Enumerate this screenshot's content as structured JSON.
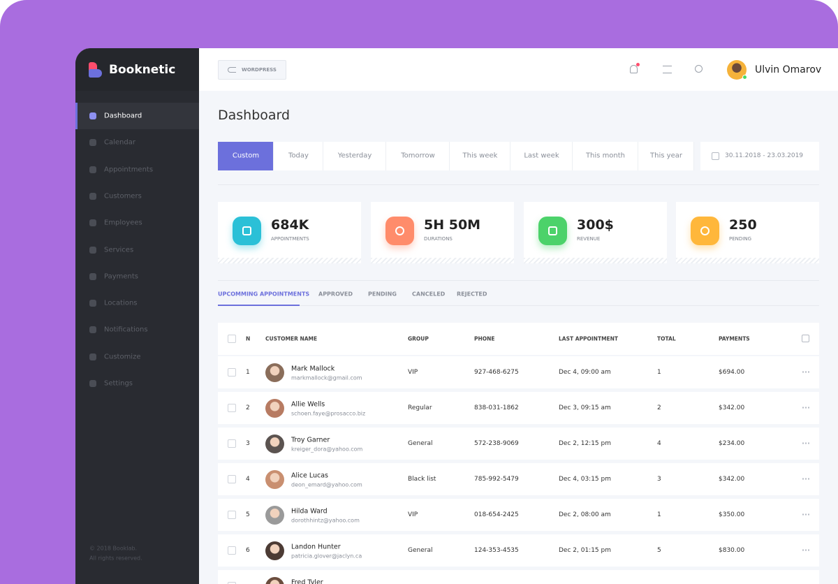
{
  "brand": "Booknetic",
  "sidebar": {
    "menu": [
      "Dashboard",
      "Calendar",
      "Appointments",
      "Customers",
      "Employees",
      "Services",
      "Payments",
      "Locations",
      "Notifications",
      "Customize",
      "Settings"
    ],
    "footer": [
      "© 2018 Booklab.",
      "All rights reserved."
    ]
  },
  "topbar": {
    "button": "WORDPRESS",
    "user": "Ulvin Omarov"
  },
  "page_title": "Dashboard",
  "filters": {
    "options": [
      "Custom",
      "Today",
      "Yesterday",
      "Tomorrow",
      "This week",
      "Last week",
      "This month",
      "This year"
    ],
    "date_range": "30.11.2018 - 23.03.2019"
  },
  "stats": [
    {
      "value": "684K",
      "label": "APPOINTMENTS"
    },
    {
      "value": "5H 50M",
      "label": "DURATIONS"
    },
    {
      "value": "300$",
      "label": "REVENUE"
    },
    {
      "value": "250",
      "label": "PENDING"
    }
  ],
  "tabs": [
    "UPCOMMING APPOINTMENTS",
    "APPROVED",
    "PENDING",
    "CANCELED",
    "REJECTED"
  ],
  "table": {
    "headers": [
      "N",
      "CUSTOMER NAME",
      "GROUP",
      "PHONE",
      "LAST APPOINTMENT",
      "TOTAL",
      "PAYMENTS"
    ],
    "rows": [
      {
        "n": 1,
        "name": "Mark Mallock",
        "email": "markmallock@gmail.com",
        "group": "VIP",
        "phone": "927-468-6275",
        "last": "Dec 4, 09:00 am",
        "total": 1,
        "payment": "$694.00"
      },
      {
        "n": 2,
        "name": "Allie Wells",
        "email": "schoen.faye@prosacco.biz",
        "group": "Regular",
        "phone": "838-031-1862",
        "last": "Dec 3, 09:15 am",
        "total": 2,
        "payment": "$342.00"
      },
      {
        "n": 3,
        "name": "Troy Garner",
        "email": "kreiger_dora@yahoo.com",
        "group": "General",
        "phone": "572-238-9069",
        "last": "Dec 2, 12:15 pm",
        "total": 4,
        "payment": "$234.00"
      },
      {
        "n": 4,
        "name": "Alice Lucas",
        "email": "deon_emard@yahoo.com",
        "group": "Black list",
        "phone": "785-992-5479",
        "last": "Dec 4, 03:15 pm",
        "total": 3,
        "payment": "$342.00"
      },
      {
        "n": 5,
        "name": "Hilda Ward",
        "email": "dorothhintz@yahoo.com",
        "group": "VIP",
        "phone": "018-654-2425",
        "last": "Dec 2, 08:00 am",
        "total": 1,
        "payment": "$350.00"
      },
      {
        "n": 6,
        "name": "Landon Hunter",
        "email": "patricia.glover@jaclyn.ca",
        "group": "General",
        "phone": "124-353-4535",
        "last": "Dec 2, 01:15 pm",
        "total": 5,
        "payment": "$830.00"
      },
      {
        "name": "Fred Tyler"
      }
    ]
  }
}
